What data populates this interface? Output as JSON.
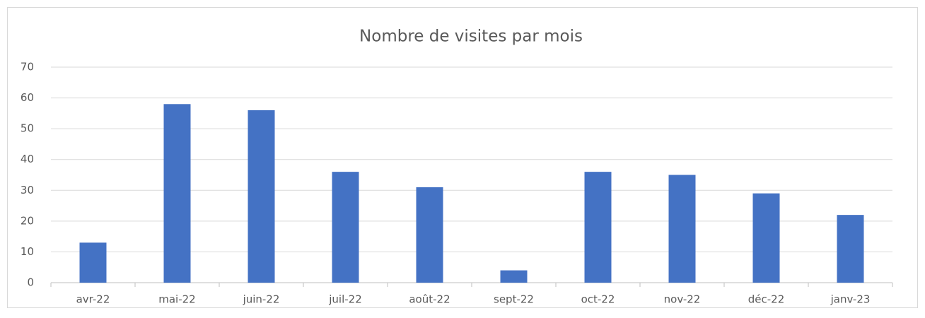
{
  "chart_data": {
    "type": "bar",
    "title": "Nombre de visites par mois",
    "categories": [
      "avr-22",
      "mai-22",
      "juin-22",
      "juil-22",
      "août-22",
      "sept-22",
      "oct-22",
      "nov-22",
      "déc-22",
      "janv-23"
    ],
    "values": [
      13,
      58,
      56,
      36,
      31,
      4,
      36,
      35,
      29,
      22
    ],
    "color": "#4472c4",
    "ylim": [
      0,
      70
    ],
    "yticks": [
      0,
      10,
      20,
      30,
      40,
      50,
      60,
      70
    ],
    "grid": true
  }
}
